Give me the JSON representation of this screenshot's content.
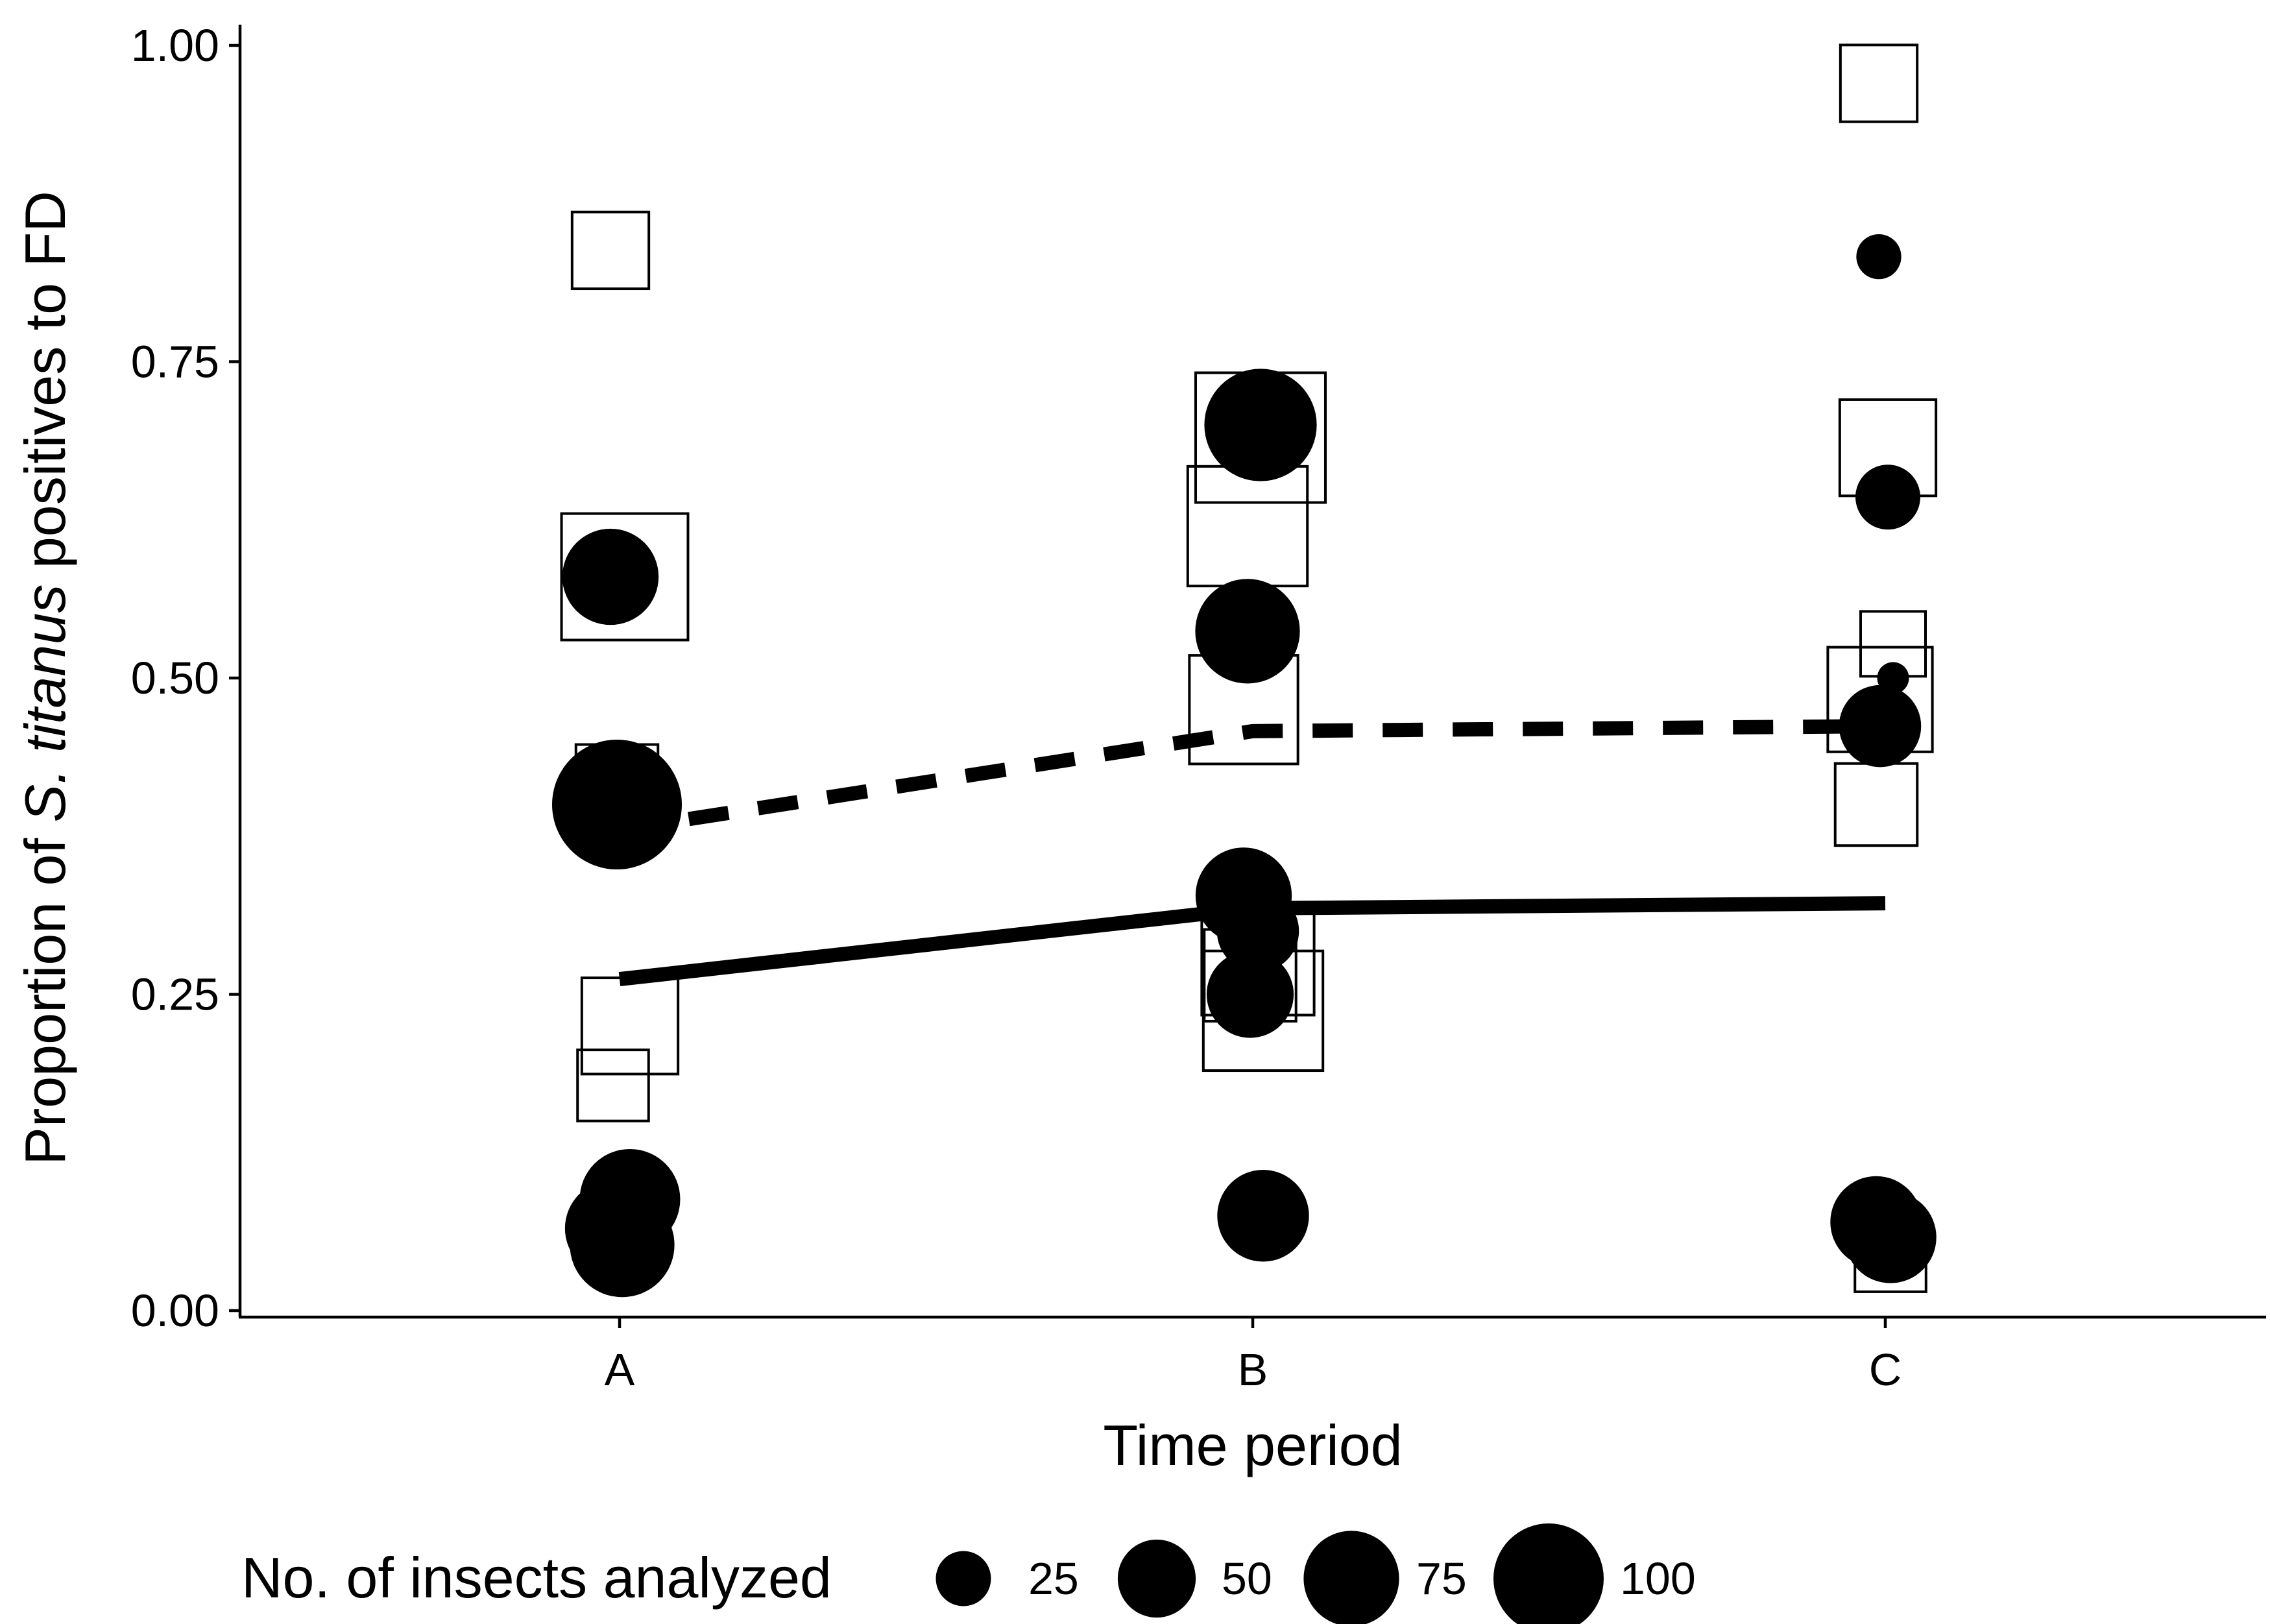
{
  "chart_data": {
    "type": "scatter",
    "title": "",
    "xlabel": "Time period",
    "ylabel": {
      "prefix": "Proportion of ",
      "italic": "S. titanus",
      "suffix": " positives to FD"
    },
    "categories": [
      "A",
      "B",
      "C"
    ],
    "ylim": [
      0,
      1
    ],
    "yticks": [
      "0.00",
      "0.25",
      "0.50",
      "0.75",
      "1.00"
    ],
    "grid": false,
    "legend": {
      "title": "No. of insects analyzed",
      "position": "bottom",
      "sizes": [
        {
          "label": "25",
          "value": 25
        },
        {
          "label": "50",
          "value": 50
        },
        {
          "label": "75",
          "value": 75
        },
        {
          "label": "100",
          "value": 100
        }
      ]
    },
    "colors": {
      "ink": "#000000",
      "paper": "#ffffff"
    },
    "series": [
      {
        "marker": "open-square",
        "points": [
          {
            "x": "A",
            "y": 0.838,
            "n": 35
          },
          {
            "x": "A",
            "y": 0.58,
            "n": 95
          },
          {
            "x": "A",
            "y": 0.415,
            "n": 40
          },
          {
            "x": "A",
            "y": 0.225,
            "n": 55
          },
          {
            "x": "A",
            "y": 0.178,
            "n": 30
          },
          {
            "x": "A",
            "y": 0.055,
            "n": 25
          },
          {
            "x": "B",
            "y": 0.69,
            "n": 100
          },
          {
            "x": "B",
            "y": 0.62,
            "n": 85
          },
          {
            "x": "B",
            "y": 0.475,
            "n": 70
          },
          {
            "x": "B",
            "y": 0.278,
            "n": 75
          },
          {
            "x": "B",
            "y": 0.265,
            "n": 50
          },
          {
            "x": "B",
            "y": 0.237,
            "n": 85
          },
          {
            "x": "C",
            "y": 0.97,
            "n": 35
          },
          {
            "x": "C",
            "y": 0.682,
            "n": 55
          },
          {
            "x": "C",
            "y": 0.527,
            "n": 25
          },
          {
            "x": "C",
            "y": 0.483,
            "n": 65
          },
          {
            "x": "C",
            "y": 0.4,
            "n": 40
          },
          {
            "x": "C",
            "y": 0.043,
            "n": 30
          }
        ]
      },
      {
        "marker": "filled-circle",
        "points": [
          {
            "x": "A",
            "y": 0.58,
            "n": 55
          },
          {
            "x": "A",
            "y": 0.41,
            "n": 60
          },
          {
            "x": "A",
            "y": 0.4,
            "n": 100
          },
          {
            "x": "A",
            "y": 0.088,
            "n": 60
          },
          {
            "x": "A",
            "y": 0.065,
            "n": 55
          },
          {
            "x": "A",
            "y": 0.052,
            "n": 65
          },
          {
            "x": "B",
            "y": 0.7,
            "n": 75
          },
          {
            "x": "B",
            "y": 0.537,
            "n": 65
          },
          {
            "x": "B",
            "y": 0.328,
            "n": 55
          },
          {
            "x": "B",
            "y": 0.3,
            "n": 40
          },
          {
            "x": "B",
            "y": 0.25,
            "n": 45
          },
          {
            "x": "B",
            "y": 0.075,
            "n": 50
          },
          {
            "x": "C",
            "y": 0.833,
            "n": 12
          },
          {
            "x": "C",
            "y": 0.643,
            "n": 25
          },
          {
            "x": "C",
            "y": 0.5,
            "n": 6
          },
          {
            "x": "C",
            "y": 0.462,
            "n": 40
          },
          {
            "x": "C",
            "y": 0.07,
            "n": 50
          },
          {
            "x": "C",
            "y": 0.058,
            "n": 50
          }
        ]
      },
      {
        "marker": "line",
        "dash": "dashed",
        "points": [
          {
            "x": "A",
            "y": 0.38
          },
          {
            "x": "B",
            "y": 0.458
          },
          {
            "x": "C",
            "y": 0.462
          }
        ]
      },
      {
        "marker": "line",
        "dash": "solid",
        "points": [
          {
            "x": "A",
            "y": 0.262
          },
          {
            "x": "B",
            "y": 0.318
          },
          {
            "x": "C",
            "y": 0.322
          }
        ]
      }
    ]
  }
}
